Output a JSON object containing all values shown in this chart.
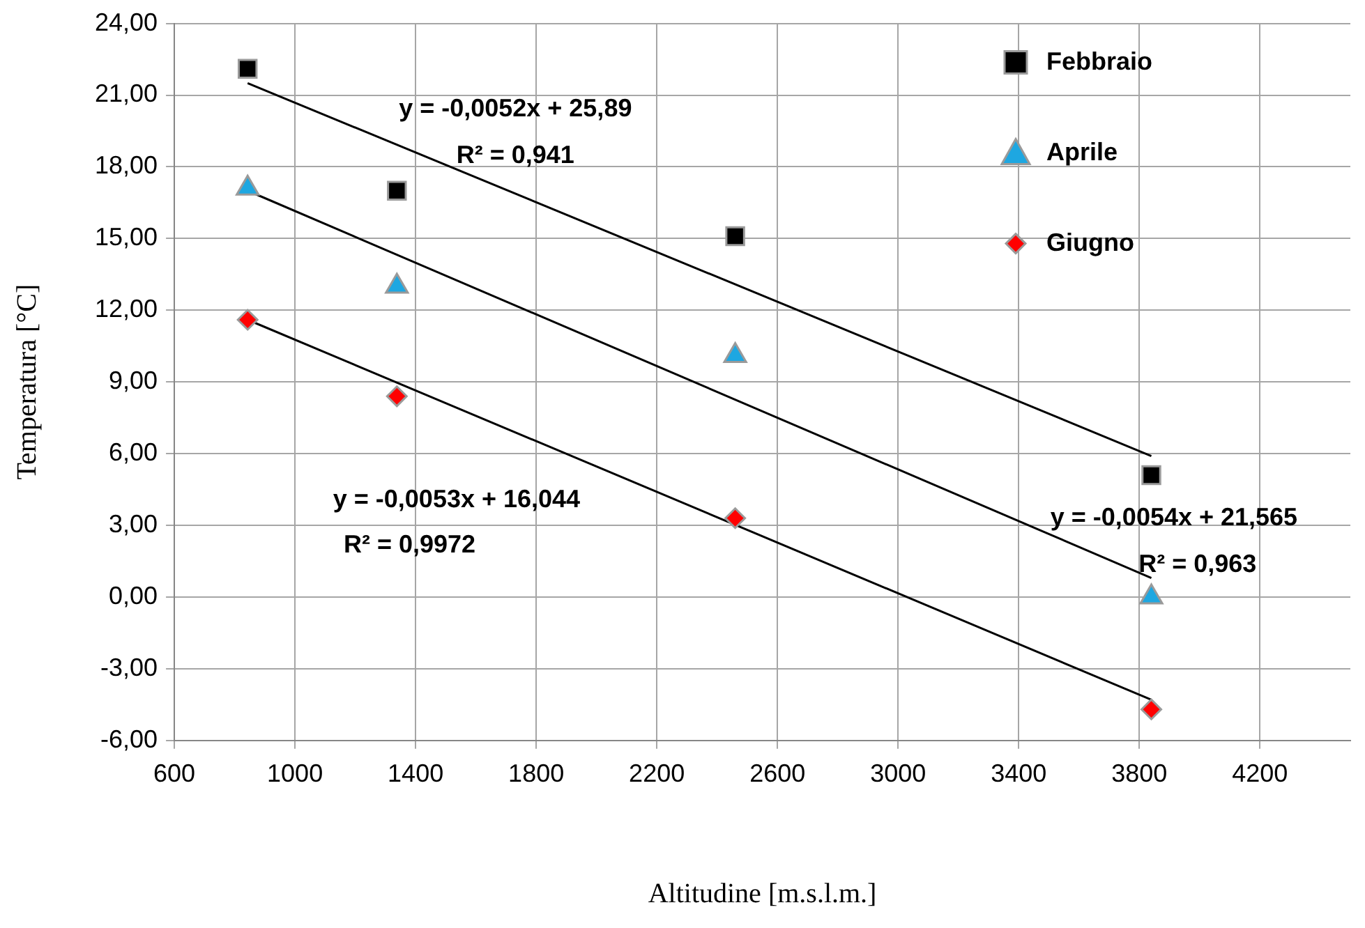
{
  "chart_data": {
    "type": "scatter",
    "xlabel": "Altitudine [m.s.l.m.]",
    "ylabel": "Temperatura [°C]",
    "x": [
      843,
      1338,
      2460,
      3840
    ],
    "series": [
      {
        "name": "Febbraio",
        "color": "#000000",
        "marker": "square",
        "values": [
          22.1,
          17.0,
          15.1,
          5.1
        ]
      },
      {
        "name": "Aprile",
        "color": "#1ea7e1",
        "marker": "triangle",
        "values": [
          17.1,
          13.0,
          10.1,
          0.0
        ]
      },
      {
        "name": "Giugno",
        "color": "#ff0000",
        "marker": "diamond",
        "values": [
          11.6,
          8.4,
          3.3,
          -4.7
        ]
      },
      {
        "type": "line",
        "color": "#000000",
        "marker": "none",
        "values": [
          21.5,
          null,
          null,
          5.9
        ]
      },
      {
        "type": "line",
        "color": "#000000",
        "marker": "none",
        "values": [
          17.0,
          null,
          null,
          0.8
        ]
      },
      {
        "type": "line",
        "color": "#000000",
        "marker": "none",
        "values": [
          11.6,
          null,
          null,
          -4.3
        ]
      }
    ],
    "xlim": [
      600,
      4500
    ],
    "xticks": [
      600,
      1000,
      1400,
      1800,
      2200,
      2600,
      3000,
      3400,
      3800,
      4200
    ],
    "ylim": [
      -6,
      24
    ],
    "yticks": [
      {
        "value": -6,
        "label": "-6,00"
      },
      {
        "value": -3,
        "label": "-3,00"
      },
      {
        "value": 0,
        "label": "0,00"
      },
      {
        "value": 3,
        "label": "3,00"
      },
      {
        "value": 6,
        "label": "6,00"
      },
      {
        "value": 9,
        "label": "9,00"
      },
      {
        "value": 12,
        "label": "12,00"
      },
      {
        "value": 15,
        "label": "15,00"
      },
      {
        "value": 18,
        "label": "18,00"
      },
      {
        "value": 21,
        "label": "21,00"
      },
      {
        "value": 24,
        "label": "24,00"
      }
    ],
    "grid": true,
    "legend": "top right",
    "annotations": [
      "y = -0,0052x + 25,89",
      "R² = 0,941",
      "y = -0,0054x + 21,565",
      "R² = 0,963",
      "y = -0,0053x + 16,044",
      "R² = 0,9972"
    ]
  }
}
